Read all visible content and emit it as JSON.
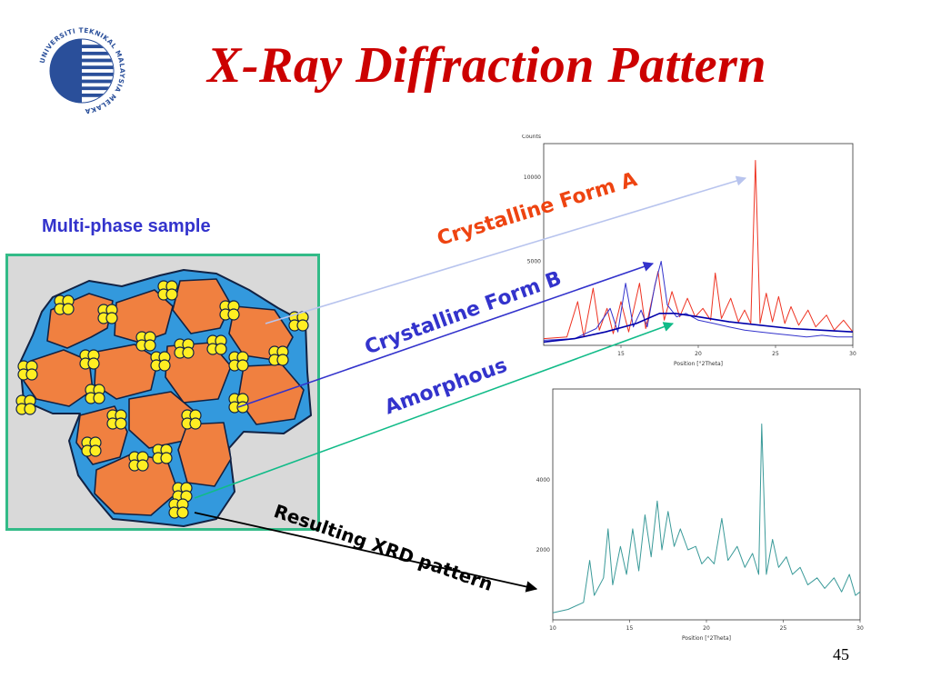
{
  "slide": {
    "title": "X-Ray Diffraction Pattern",
    "sample_label": "Multi-phase sample",
    "page_number": "45"
  },
  "logo": {
    "text": "UNIVERSITI TEKNIKAL MALAYSIA MELAKA",
    "color": "#2a4f9a"
  },
  "labels": {
    "form_a": "Crystalline Form A",
    "form_b": "Crystalline Form B",
    "amorphous": "Amorphous",
    "resulting": "Resulting XRD pattern"
  },
  "colors": {
    "title": "#cc0000",
    "form_a": "#ee4411",
    "form_b": "#3333cc",
    "amorphous_arrow": "#11bb88",
    "grain_fill": "#f08040",
    "grain_border": "#3399dd",
    "amorphous_particle": "#ffee22",
    "sample_frame": "#33bb88",
    "sample_bg": "#d9d9d9"
  },
  "chart_data": [
    {
      "type": "line",
      "ylabel": "Counts",
      "xlabel": "Position [°2Theta]",
      "xlim": [
        10,
        30
      ],
      "xticks": [
        15,
        20,
        25,
        30
      ],
      "ylim": [
        0,
        12000
      ],
      "yticks": [
        10000,
        5000
      ],
      "series": [
        {
          "color": "#ee3322",
          "points": [
            [
              10,
              400
            ],
            [
              11.5,
              500
            ],
            [
              12.2,
              2600
            ],
            [
              12.6,
              500
            ],
            [
              13.2,
              3400
            ],
            [
              13.6,
              900
            ],
            [
              14.1,
              2200
            ],
            [
              14.5,
              700
            ],
            [
              15,
              2600
            ],
            [
              15.5,
              800
            ],
            [
              16.2,
              3700
            ],
            [
              16.6,
              1000
            ],
            [
              17,
              2700
            ],
            [
              17.4,
              4400
            ],
            [
              17.8,
              1500
            ],
            [
              18.3,
              3200
            ],
            [
              18.8,
              1700
            ],
            [
              19.3,
              2800
            ],
            [
              19.8,
              1700
            ],
            [
              20.3,
              2200
            ],
            [
              20.8,
              1500
            ],
            [
              21.1,
              4300
            ],
            [
              21.5,
              1600
            ],
            [
              22.1,
              2800
            ],
            [
              22.6,
              1400
            ],
            [
              23,
              2100
            ],
            [
              23.4,
              1300
            ],
            [
              23.7,
              11000
            ],
            [
              24,
              1300
            ],
            [
              24.4,
              3100
            ],
            [
              24.8,
              1400
            ],
            [
              25.2,
              2900
            ],
            [
              25.6,
              1300
            ],
            [
              26,
              2300
            ],
            [
              26.5,
              1200
            ],
            [
              27.1,
              2100
            ],
            [
              27.6,
              1100
            ],
            [
              28.3,
              1800
            ],
            [
              28.8,
              900
            ],
            [
              29.4,
              1500
            ],
            [
              30,
              800
            ]
          ]
        },
        {
          "color": "#3333cc",
          "points": [
            [
              10,
              300
            ],
            [
              12,
              400
            ],
            [
              13.4,
              1000
            ],
            [
              14.3,
              2200
            ],
            [
              14.8,
              800
            ],
            [
              15.3,
              3700
            ],
            [
              15.8,
              1100
            ],
            [
              16.3,
              2100
            ],
            [
              16.7,
              1100
            ],
            [
              17.2,
              3600
            ],
            [
              17.6,
              5000
            ],
            [
              18,
              2400
            ],
            [
              18.6,
              1700
            ],
            [
              19.2,
              1900
            ],
            [
              20,
              1500
            ],
            [
              21,
              1300
            ],
            [
              22,
              1100
            ],
            [
              23,
              900
            ],
            [
              24,
              800
            ],
            [
              25,
              700
            ],
            [
              26,
              600
            ],
            [
              27,
              500
            ],
            [
              28,
              600
            ],
            [
              29,
              500
            ],
            [
              30,
              500
            ]
          ]
        },
        {
          "color": "#0000aa",
          "points": [
            [
              10,
              200
            ],
            [
              12,
              400
            ],
            [
              14,
              800
            ],
            [
              16,
              1300
            ],
            [
              17.5,
              1900
            ],
            [
              18.5,
              1900
            ],
            [
              20,
              1700
            ],
            [
              22,
              1400
            ],
            [
              24,
              1200
            ],
            [
              26,
              1000
            ],
            [
              28,
              900
            ],
            [
              30,
              800
            ]
          ]
        }
      ]
    },
    {
      "type": "line",
      "ylabel": "Counts",
      "xlabel": "Position [°2Theta]",
      "xlim": [
        10,
        30
      ],
      "xticks": [
        10,
        15,
        20,
        25,
        30
      ],
      "ylim": [
        0,
        6600
      ],
      "yticks": [
        4000,
        2000
      ],
      "series": [
        {
          "color": "#3a9a99",
          "points": [
            [
              10,
              200
            ],
            [
              11,
              300
            ],
            [
              12,
              500
            ],
            [
              12.4,
              1700
            ],
            [
              12.7,
              700
            ],
            [
              13.3,
              1200
            ],
            [
              13.6,
              2600
            ],
            [
              13.9,
              1000
            ],
            [
              14.4,
              2100
            ],
            [
              14.8,
              1300
            ],
            [
              15.2,
              2600
            ],
            [
              15.6,
              1400
            ],
            [
              16,
              3000
            ],
            [
              16.4,
              1800
            ],
            [
              16.8,
              3400
            ],
            [
              17.1,
              2000
            ],
            [
              17.5,
              3100
            ],
            [
              17.9,
              2100
            ],
            [
              18.3,
              2600
            ],
            [
              18.8,
              2000
            ],
            [
              19.3,
              2100
            ],
            [
              19.7,
              1600
            ],
            [
              20.1,
              1800
            ],
            [
              20.5,
              1600
            ],
            [
              21,
              2900
            ],
            [
              21.4,
              1700
            ],
            [
              22,
              2100
            ],
            [
              22.5,
              1500
            ],
            [
              23,
              1900
            ],
            [
              23.4,
              1300
            ],
            [
              23.6,
              5600
            ],
            [
              23.9,
              1300
            ],
            [
              24.3,
              2300
            ],
            [
              24.7,
              1500
            ],
            [
              25.2,
              1800
            ],
            [
              25.6,
              1300
            ],
            [
              26.1,
              1500
            ],
            [
              26.6,
              1000
            ],
            [
              27.2,
              1200
            ],
            [
              27.7,
              900
            ],
            [
              28.3,
              1200
            ],
            [
              28.8,
              800
            ],
            [
              29.3,
              1300
            ],
            [
              29.7,
              700
            ],
            [
              30,
              800
            ]
          ]
        }
      ]
    }
  ]
}
